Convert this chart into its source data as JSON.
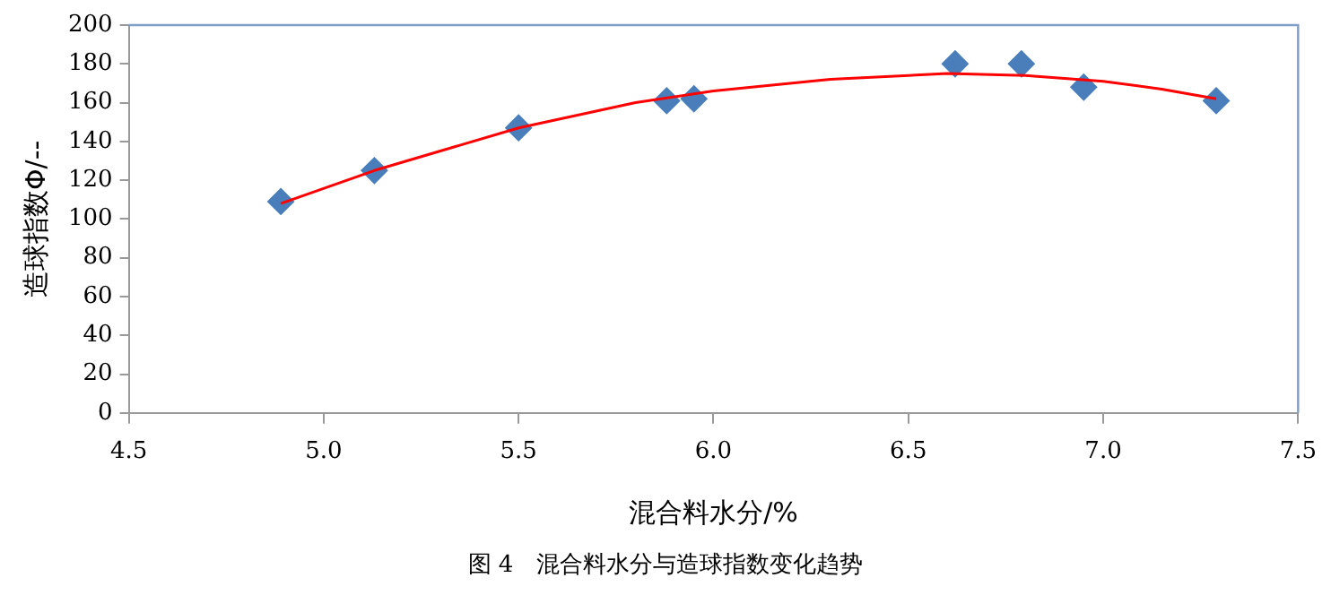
{
  "chart_data": {
    "type": "scatter",
    "xlabel": "混合料水分/%",
    "ylabel": "造球指数Φ/--",
    "annotations": [
      "图 4　混合料水分与造球指数变化趋势"
    ],
    "xlim": [
      4.5,
      7.5
    ],
    "xticks": [
      {
        "value": 4.5,
        "label": "4.5"
      },
      {
        "value": 5,
        "label": "5.0"
      },
      {
        "value": 5.5,
        "label": "5.5"
      },
      {
        "value": 6,
        "label": "6.0"
      },
      {
        "value": 6.5,
        "label": "6.5"
      },
      {
        "value": 7,
        "label": "7.0"
      },
      {
        "value": 7.5,
        "label": "7.5"
      }
    ],
    "ylim": [
      0,
      200
    ],
    "yticks": [
      0,
      20,
      40,
      60,
      80,
      100,
      120,
      140,
      160,
      180,
      200
    ],
    "grid": false,
    "legend": false,
    "marker": "diamond",
    "series": [
      {
        "color": "#4a7ebb",
        "x": [
          4.89,
          5.13,
          5.5,
          5.88,
          5.95,
          6.62,
          6.79,
          6.95,
          7.29
        ],
        "values": [
          109,
          125,
          147,
          161,
          162,
          180,
          180,
          168,
          161
        ]
      },
      {
        "type": "line",
        "color": "#ff0000",
        "marker": "none",
        "line_style": "solid",
        "x": [
          4.89,
          5.13,
          5.5,
          5.8,
          6.0,
          6.3,
          6.6,
          6.8,
          7.0,
          7.15,
          7.29
        ],
        "values": [
          108,
          125,
          147,
          160,
          166,
          172,
          175,
          174,
          171,
          167,
          162
        ]
      }
    ]
  }
}
